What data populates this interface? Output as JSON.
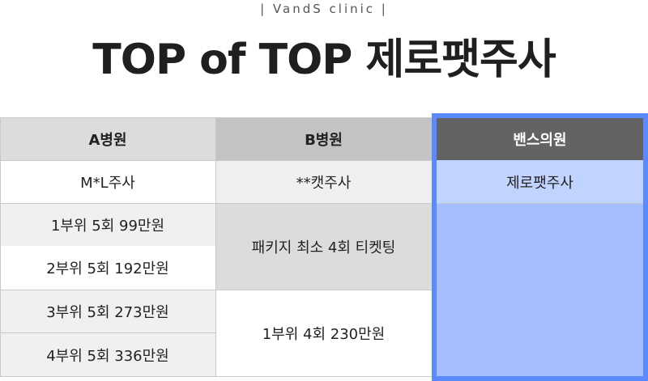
{
  "header": {
    "brand": "|  VandS clinic  |",
    "title": "TOP of TOP 제로팻주사"
  },
  "table": {
    "columns": [
      {
        "name": "A병원",
        "product": "M*L주사",
        "prices": [
          "1부위 5회 99만원",
          "2부위 5회 192만원",
          "3부위 5회 273만원",
          "4부위 5회 336만원"
        ]
      },
      {
        "name": "B병원",
        "product": "**캣주사",
        "prices": [
          "패키지 최소 4회 티켓팅",
          "1부위 4회 230만원"
        ]
      },
      {
        "name": "밴스의원",
        "product": "제로팻주사",
        "prices": []
      }
    ]
  },
  "colors": {
    "a_header_bg": "#dcdcdc",
    "b_header_bg": "#c3c3c3",
    "highlight_header_bg": "#636363",
    "highlight_body_bg": "#a3bdfe",
    "highlight_product_bg": "#c1d4ff",
    "highlight_border": "#5b89ff"
  }
}
